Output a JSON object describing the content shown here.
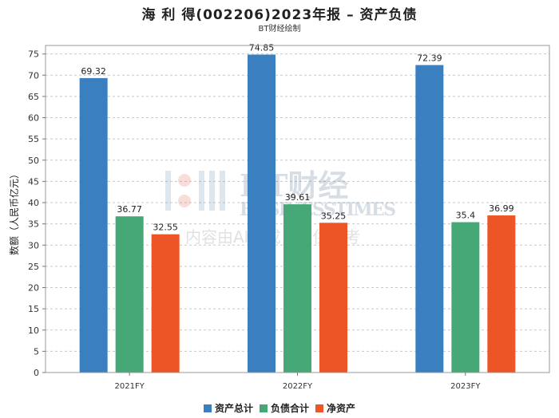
{
  "chart_data": {
    "type": "bar",
    "title": "海 利 得(002206)2023年报 – 资产负债",
    "subtitle": "BT财经绘制",
    "xlabel": "",
    "ylabel": "数额（人民币亿元）",
    "ylim": [
      0,
      77
    ],
    "yticks": [
      0,
      5,
      10,
      15,
      20,
      25,
      30,
      35,
      40,
      45,
      50,
      55,
      60,
      65,
      70,
      75
    ],
    "grid": true,
    "legend_position": "bottom",
    "categories": [
      "2021FY",
      "2022FY",
      "2023FY"
    ],
    "series": [
      {
        "name": "资产总计",
        "color": "#3A7FBF",
        "values": [
          69.32,
          74.85,
          72.39
        ],
        "labels": [
          "69.32",
          "74.85",
          "72.39"
        ]
      },
      {
        "name": "负债合计",
        "color": "#46A877",
        "values": [
          36.77,
          39.61,
          35.4
        ],
        "labels": [
          "36.77",
          "39.61",
          "35.4"
        ]
      },
      {
        "name": "净资产",
        "color": "#EE5526",
        "values": [
          32.55,
          35.25,
          36.99
        ],
        "labels": [
          "32.55",
          "35.25",
          "36.99"
        ]
      }
    ],
    "watermark": {
      "brand": "BT财经",
      "brand_en": "BUSINESSTIMES",
      "notice": "内容由AI生成，仅供参考"
    }
  }
}
